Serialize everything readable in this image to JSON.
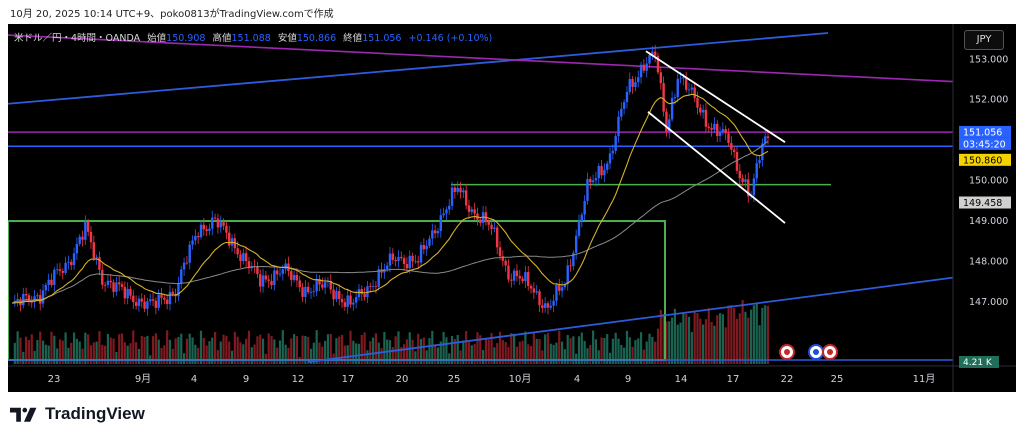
{
  "header": {
    "caption": "10月 20, 2025 10:14 UTC+9、poko0813がTradingView.comで作成"
  },
  "legend": {
    "symbol": "米ドル／円・4時間・OANDA",
    "open_label": "始値",
    "open": "150.908",
    "high_label": "高値",
    "high": "151.088",
    "low_label": "安値",
    "low": "150.866",
    "close_label": "終値",
    "close": "151.056",
    "change": "+0.146 (+0.10%)"
  },
  "currency_button": "JPY",
  "brand": {
    "name": "TradingView"
  },
  "colors": {
    "background": "#000000",
    "up": "#2962ff",
    "down": "#f23645",
    "ema_fast": "#d4b12c",
    "ma_slow": "#8a8a8a",
    "blue_trend": "#2e5bdb",
    "purple_line": "#9c27b0",
    "green_box": "#4caf50",
    "channel": "#ffffff",
    "vol_up": "#1e6e5a",
    "vol_down": "#8c1d24"
  },
  "chart_data": {
    "type": "candlestick",
    "symbol": "米ドル／円・4時間・OANDA",
    "y_axis": {
      "ticks": [
        "153.000",
        "152.000",
        "150.000",
        "149.000",
        "148.000",
        "147.000"
      ],
      "range": [
        146.0,
        153.7
      ]
    },
    "x_axis": {
      "ticks": [
        "23",
        "9月",
        "4",
        "9",
        "12",
        "17",
        "20",
        "25",
        "10月",
        "4",
        "9",
        "14",
        "17",
        "22",
        "25",
        "11月"
      ]
    },
    "price_labels": [
      {
        "id": "last",
        "text": "151.056",
        "value": 151.056,
        "bg": "#2962ff",
        "color": "#ffffff"
      },
      {
        "id": "countdown",
        "text": "03:45:20",
        "value": 151.056,
        "bg": "#2962ff",
        "color": "#ffffff"
      },
      {
        "id": "yellow",
        "text": "150.860",
        "value": 150.86,
        "bg": "#f5d300",
        "color": "#000000"
      },
      {
        "id": "gray",
        "text": "149.458",
        "value": 149.458,
        "bg": "#d0d0d0",
        "color": "#000000"
      }
    ],
    "volume_label": "4.21 K",
    "horizontal_levels": [
      {
        "value": 151.2,
        "color": "#9c27b0"
      },
      {
        "value": 150.85,
        "color": "#2962ff"
      },
      {
        "value": 149.9,
        "color": "#4caf50"
      }
    ],
    "anchors": [
      {
        "t": 0,
        "p": 146.9
      },
      {
        "t": 10,
        "p": 147.2
      },
      {
        "t": 20,
        "p": 148.0
      },
      {
        "t": 26,
        "p": 148.8
      },
      {
        "t": 32,
        "p": 147.6
      },
      {
        "t": 40,
        "p": 147.2
      },
      {
        "t": 50,
        "p": 146.9
      },
      {
        "t": 58,
        "p": 147.3
      },
      {
        "t": 66,
        "p": 148.8
      },
      {
        "t": 72,
        "p": 149.0
      },
      {
        "t": 80,
        "p": 148.3
      },
      {
        "t": 88,
        "p": 147.5
      },
      {
        "t": 96,
        "p": 147.8
      },
      {
        "t": 104,
        "p": 147.3
      },
      {
        "t": 112,
        "p": 147.4
      },
      {
        "t": 120,
        "p": 146.9
      },
      {
        "t": 128,
        "p": 147.5
      },
      {
        "t": 136,
        "p": 148.1
      },
      {
        "t": 144,
        "p": 148.0
      },
      {
        "t": 152,
        "p": 149.1
      },
      {
        "t": 158,
        "p": 149.8
      },
      {
        "t": 164,
        "p": 149.2
      },
      {
        "t": 170,
        "p": 148.8
      },
      {
        "t": 176,
        "p": 147.7
      },
      {
        "t": 184,
        "p": 147.4
      },
      {
        "t": 190,
        "p": 146.8
      },
      {
        "t": 196,
        "p": 147.5
      },
      {
        "t": 204,
        "p": 149.8
      },
      {
        "t": 212,
        "p": 150.6
      },
      {
        "t": 218,
        "p": 152.2
      },
      {
        "t": 224,
        "p": 152.9
      },
      {
        "t": 228,
        "p": 153.1
      },
      {
        "t": 232,
        "p": 151.3
      },
      {
        "t": 236,
        "p": 152.6
      },
      {
        "t": 242,
        "p": 152.0
      },
      {
        "t": 248,
        "p": 151.3
      },
      {
        "t": 254,
        "p": 151.0
      },
      {
        "t": 258,
        "p": 150.2
      },
      {
        "t": 262,
        "p": 149.6
      },
      {
        "t": 266,
        "p": 150.9
      },
      {
        "t": 268,
        "p": 151.06
      }
    ],
    "n_candles": 268
  }
}
